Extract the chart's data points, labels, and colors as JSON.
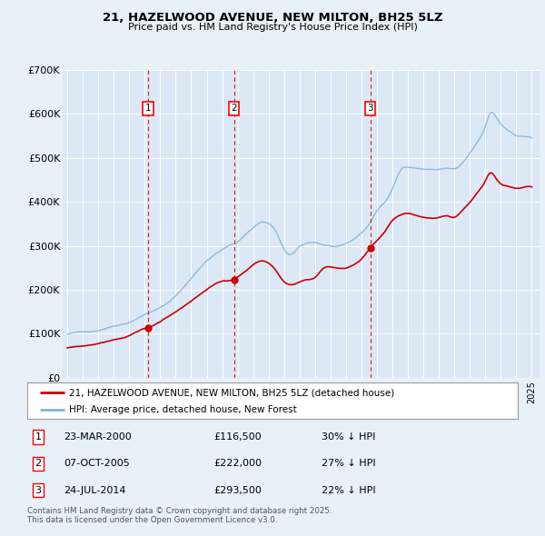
{
  "title": "21, HAZELWOOD AVENUE, NEW MILTON, BH25 5LZ",
  "subtitle": "Price paid vs. HM Land Registry's House Price Index (HPI)",
  "background_color": "#e8f0f8",
  "plot_bg_color": "#dce8f5",
  "ylim": [
    0,
    700000
  ],
  "yticks": [
    0,
    100000,
    200000,
    300000,
    400000,
    500000,
    600000,
    700000
  ],
  "ytick_labels": [
    "£0",
    "£100K",
    "£200K",
    "£300K",
    "£400K",
    "£500K",
    "£600K",
    "£700K"
  ],
  "xlim_start": 1994.7,
  "xlim_end": 2025.5,
  "red_line_color": "#cc0000",
  "blue_line_color": "#7eb4d8",
  "grid_color": "#ffffff",
  "transaction_markers": [
    {
      "year": 2000.22,
      "price": 116500,
      "label": "1"
    },
    {
      "year": 2005.76,
      "price": 222000,
      "label": "2"
    },
    {
      "year": 2014.56,
      "price": 293500,
      "label": "3"
    }
  ],
  "legend_red_label": "21, HAZELWOOD AVENUE, NEW MILTON, BH25 5LZ (detached house)",
  "legend_blue_label": "HPI: Average price, detached house, New Forest",
  "table_entries": [
    {
      "num": "1",
      "date": "23-MAR-2000",
      "price": "£116,500",
      "note": "30% ↓ HPI"
    },
    {
      "num": "2",
      "date": "07-OCT-2005",
      "price": "£222,000",
      "note": "27% ↓ HPI"
    },
    {
      "num": "3",
      "date": "24-JUL-2014",
      "price": "£293,500",
      "note": "22% ↓ HPI"
    }
  ],
  "footer_text": "Contains HM Land Registry data © Crown copyright and database right 2025.\nThis data is licensed under the Open Government Licence v3.0."
}
